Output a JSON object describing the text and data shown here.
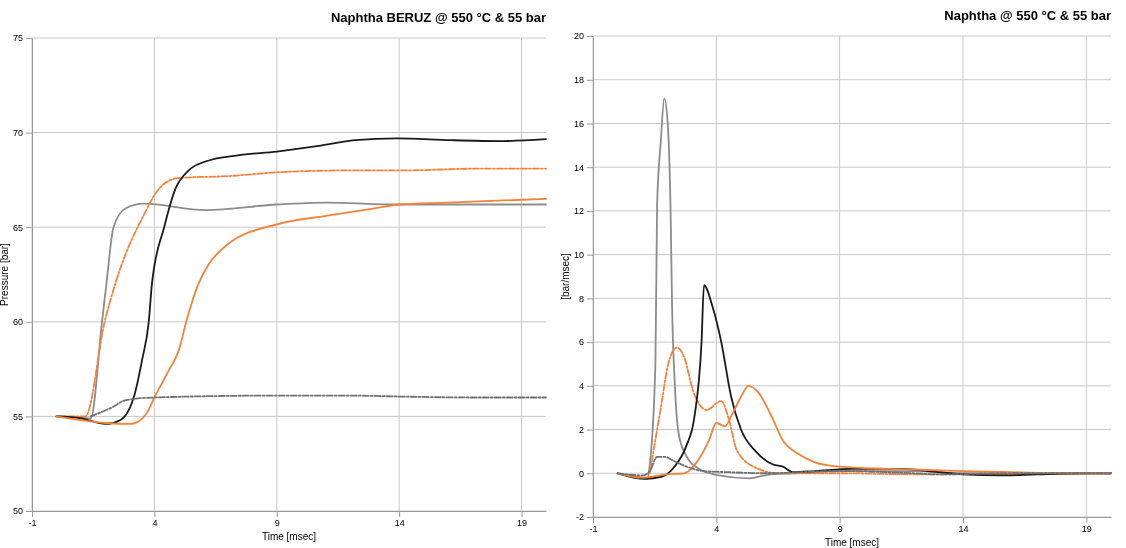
{
  "chart_data": [
    {
      "type": "line",
      "title": "Naphtha BERUZ @ 550 °C & 55 bar",
      "xlabel": "Time [msec]",
      "ylabel": "Pressure [bar]",
      "xlim": [
        -1,
        20
      ],
      "xticks": [
        -1,
        4,
        9,
        14,
        19
      ],
      "ylim": [
        50,
        75
      ],
      "yticks": [
        50,
        55,
        60,
        65,
        70,
        75
      ],
      "grid": true,
      "marker": "none",
      "series": [
        {
          "color": "#8c8c8c",
          "line_style": "solid",
          "x": [
            0,
            1,
            1.4,
            1.86,
            2.04,
            2.33,
            2.83,
            3.55,
            6.1,
            9,
            11,
            14,
            20
          ],
          "values": [
            55,
            54.95,
            54.9,
            60,
            62,
            65,
            66,
            66.25,
            65.9,
            66.2,
            66.3,
            66.2,
            66.2
          ]
        },
        {
          "color": "#f4823a",
          "line_style": "dashdot",
          "x": [
            0,
            1.18,
            1.97,
            2.4,
            3.55,
            4.27,
            5,
            7,
            9,
            11.75,
            14,
            17.5,
            20
          ],
          "values": [
            55,
            55,
            60,
            62,
            65.6,
            67.15,
            67.6,
            67.7,
            67.9,
            68,
            68,
            68.1,
            68.1
          ]
        },
        {
          "color": "#1a1a1a",
          "line_style": "solid",
          "x": [
            0,
            1,
            2,
            2.6,
            3.2,
            3.5,
            3.77,
            3.9,
            4.4,
            4.85,
            5.4,
            6.15,
            7.4,
            9,
            10.7,
            12.2,
            13.9,
            16.1,
            18.2,
            20
          ],
          "values": [
            55,
            54.9,
            54.6,
            54.8,
            56.2,
            58,
            60,
            62,
            65,
            67,
            68,
            68.5,
            68.8,
            69,
            69.3,
            69.6,
            69.7,
            69.6,
            69.55,
            69.65
          ]
        },
        {
          "color": "#f4823a",
          "line_style": "solid",
          "x": [
            0,
            1,
            2,
            3,
            3.3,
            3.7,
            4,
            4.6,
            5,
            5.3,
            5.8,
            6.2,
            7,
            9,
            11,
            13,
            14,
            16,
            18,
            20
          ],
          "values": [
            55,
            54.8,
            54.65,
            54.6,
            54.7,
            55.2,
            56,
            57.46,
            58.5,
            60,
            62,
            63,
            64.1,
            65.15,
            65.6,
            66,
            66.2,
            66.3,
            66.4,
            66.5
          ]
        },
        {
          "color": "#707070",
          "line_style": "dashdot",
          "x": [
            1.4,
            2.3,
            2.8,
            4,
            9,
            12,
            14,
            17,
            20
          ],
          "values": [
            55,
            55.5,
            55.85,
            56,
            56.1,
            56.1,
            56.05,
            56,
            56
          ]
        }
      ]
    },
    {
      "type": "line",
      "title": "Naphtha @ 550 °C & 55 bar",
      "xlabel": "Time [msec]",
      "ylabel": "[bar/msec]",
      "xlim": [
        -1,
        20
      ],
      "xticks": [
        -1,
        4,
        9,
        14,
        19
      ],
      "ylim": [
        -2,
        20
      ],
      "yticks": [
        -2,
        0,
        2,
        4,
        6,
        8,
        10,
        12,
        14,
        16,
        18,
        20
      ],
      "grid": true,
      "marker": "none",
      "series": [
        {
          "color": "#8c8c8c",
          "line_style": "solid",
          "x": [
            0,
            1,
            1.2,
            1.31,
            1.53,
            1.6,
            1.75,
            1.89,
            2.03,
            2.15,
            2.2,
            2.32,
            2.47,
            2.76,
            3.33,
            4,
            5.35,
            6.07,
            7.1,
            9,
            12,
            14,
            20
          ],
          "values": [
            0,
            -0.2,
            -0.25,
            0.5,
            5,
            12.3,
            15.2,
            17.15,
            16,
            11.7,
            8,
            4,
            1.83,
            0.84,
            0.18,
            -0.07,
            -0.23,
            -0.07,
            0,
            0.1,
            0.1,
            0,
            0
          ]
        },
        {
          "color": "#f4823a",
          "line_style": "dashdot",
          "x": [
            1.3,
            1.45,
            1.75,
            2.05,
            2.4,
            2.7,
            3.05,
            3.6,
            4.2,
            4.5,
            4.85,
            5.7,
            6.5,
            9,
            12,
            20
          ],
          "values": [
            0,
            1,
            3,
            5,
            5.75,
            5.3,
            3.8,
            2.9,
            3.3,
            2.5,
            1,
            0.2,
            0,
            0,
            -0.05,
            0
          ]
        },
        {
          "color": "#1a1a1a",
          "line_style": "solid",
          "x": [
            0,
            1.1,
            1.8,
            2.3,
            2.8,
            3.1,
            3.4,
            3.5,
            3.85,
            4.2,
            4.6,
            5,
            5.6,
            6.3,
            6.7,
            7.1,
            8,
            9.5,
            11.5,
            13,
            14,
            15.5,
            17,
            19,
            20
          ],
          "values": [
            0,
            -0.25,
            -0.15,
            0.3,
            1.3,
            2.5,
            6,
            8.6,
            7.6,
            6,
            3.5,
            2,
            1,
            0.4,
            0.3,
            0.05,
            0.1,
            0.2,
            0.2,
            0.05,
            -0.05,
            -0.1,
            -0.05,
            0,
            0
          ]
        },
        {
          "color": "#f4823a",
          "line_style": "solid",
          "x": [
            0,
            1,
            2,
            2.7,
            3.2,
            3.7,
            4,
            4.35,
            4.6,
            5,
            5.3,
            5.7,
            6.2,
            6.7,
            7.3,
            8,
            9,
            11,
            12.5,
            14,
            16,
            18,
            20
          ],
          "values": [
            0,
            -0.2,
            -0.05,
            0,
            0.5,
            1.5,
            2.3,
            2.15,
            2.6,
            3.5,
            4,
            3.7,
            2.7,
            1.5,
            0.9,
            0.5,
            0.3,
            0.2,
            0.15,
            0.1,
            0.05,
            0,
            0
          ]
        },
        {
          "color": "#707070",
          "line_style": "dashdot",
          "x": [
            0,
            1,
            1.3,
            1.6,
            1.9,
            2.3,
            2.8,
            3.5,
            4.5,
            6,
            9,
            12,
            13,
            16,
            20
          ],
          "values": [
            0,
            -0.1,
            0.1,
            0.75,
            0.75,
            0.55,
            0.3,
            0.1,
            0.05,
            0,
            0.1,
            0,
            -0.05,
            0,
            0
          ]
        }
      ]
    }
  ]
}
